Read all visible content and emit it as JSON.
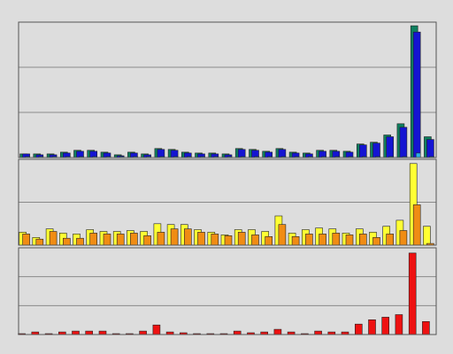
{
  "chart_data": [
    {
      "type": "bar",
      "panel": "top",
      "grid": true,
      "ylim": [
        0,
        6
      ],
      "series": [
        {
          "color": "#0f7f5f",
          "values": [
            0.16,
            0.16,
            0.16,
            0.24,
            0.32,
            0.32,
            0.24,
            0.12,
            0.24,
            0.16,
            0.4,
            0.36,
            0.24,
            0.2,
            0.2,
            0.16,
            0.4,
            0.36,
            0.28,
            0.4,
            0.24,
            0.2,
            0.32,
            0.32,
            0.28,
            0.6,
            0.68,
            1.0,
            1.5,
            5.84,
            0.92
          ]
        },
        {
          "color": "#1414d2",
          "values": [
            0.16,
            0.12,
            0.12,
            0.2,
            0.28,
            0.28,
            0.2,
            0.08,
            0.2,
            0.12,
            0.36,
            0.32,
            0.2,
            0.16,
            0.16,
            0.12,
            0.36,
            0.32,
            0.24,
            0.36,
            0.2,
            0.16,
            0.28,
            0.28,
            0.24,
            0.56,
            0.64,
            0.92,
            1.34,
            5.56,
            0.8
          ]
        },
        {
          "color": "#2aaee8",
          "values": [
            0.04,
            0.04,
            0.04,
            0.04,
            0.04,
            0.04,
            0.04,
            0.04,
            0.04,
            0.04,
            0.04,
            0.04,
            0.04,
            0.04,
            0.04,
            0.04,
            0.04,
            0.04,
            0.04,
            0.04,
            0.04,
            0.04,
            0.04,
            0.04,
            0.04,
            0.04,
            0.04,
            0.04,
            0.04,
            0.2,
            0.04
          ]
        }
      ]
    },
    {
      "type": "bar",
      "panel": "middle",
      "grid": true,
      "ylim": [
        0,
        3
      ],
      "series": [
        {
          "color": "#ffff33",
          "values": [
            0.45,
            0.27,
            0.57,
            0.42,
            0.39,
            0.54,
            0.48,
            0.48,
            0.51,
            0.48,
            0.75,
            0.72,
            0.72,
            0.54,
            0.45,
            0.36,
            0.54,
            0.54,
            0.48,
            1.02,
            0.42,
            0.54,
            0.6,
            0.57,
            0.42,
            0.57,
            0.45,
            0.66,
            0.87,
            2.85,
            0.66
          ]
        },
        {
          "color": "#f08c14",
          "values": [
            0.39,
            0.21,
            0.48,
            0.24,
            0.24,
            0.42,
            0.39,
            0.39,
            0.42,
            0.33,
            0.45,
            0.57,
            0.57,
            0.45,
            0.39,
            0.33,
            0.45,
            0.36,
            0.3,
            0.72,
            0.3,
            0.39,
            0.39,
            0.42,
            0.36,
            0.39,
            0.27,
            0.39,
            0.51,
            1.41,
            0.06
          ]
        }
      ]
    },
    {
      "type": "bar",
      "panel": "bottom",
      "grid": true,
      "ylim": [
        0,
        3
      ],
      "series": [
        {
          "color": "#ee1111",
          "values": [
            0.03,
            0.09,
            0.03,
            0.09,
            0.12,
            0.12,
            0.12,
            0.03,
            0.03,
            0.12,
            0.33,
            0.09,
            0.06,
            0.03,
            0.03,
            0.03,
            0.12,
            0.06,
            0.09,
            0.18,
            0.09,
            0.03,
            0.12,
            0.09,
            0.09,
            0.36,
            0.51,
            0.6,
            0.69,
            2.82,
            0.45
          ]
        }
      ]
    }
  ]
}
